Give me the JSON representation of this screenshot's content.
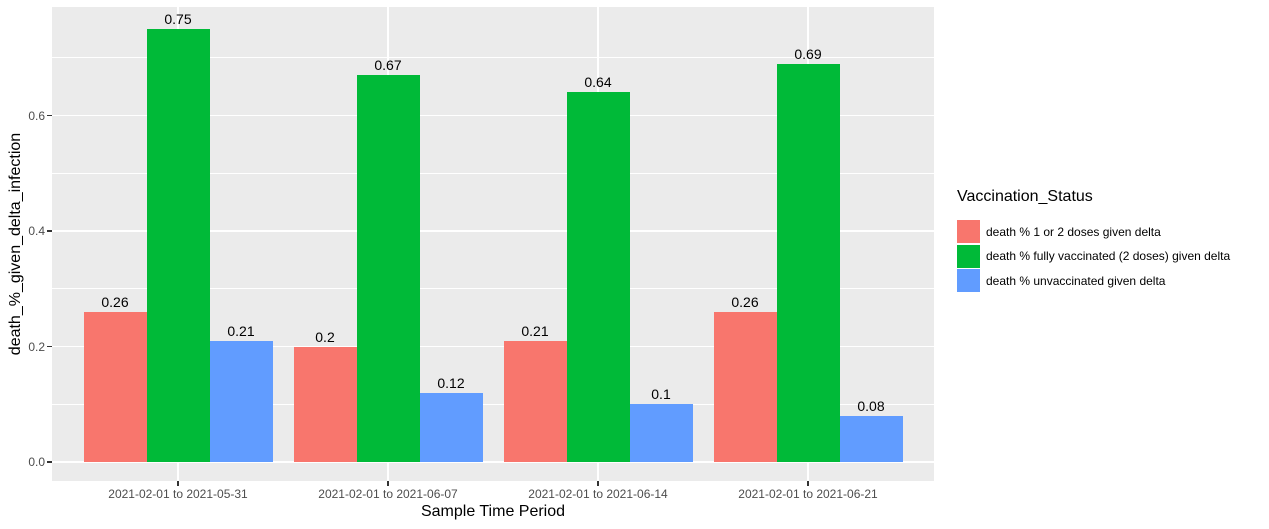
{
  "chart_data": {
    "type": "bar",
    "title": "",
    "xlabel": "Sample Time Period",
    "ylabel": "death_%_given_delta_infection",
    "categories": [
      "2021-02-01 to 2021-05-31",
      "2021-02-01 to 2021-06-07",
      "2021-02-01 to 2021-06-14",
      "2021-02-01 to 2021-06-21"
    ],
    "series": [
      {
        "name": "death % 1 or 2 doses given delta",
        "color": "#F8766D",
        "values": [
          0.26,
          0.2,
          0.21,
          0.26
        ]
      },
      {
        "name": "death % fully vaccinated (2 doses) given delta",
        "color": "#00BA38",
        "values": [
          0.75,
          0.67,
          0.64,
          0.69
        ]
      },
      {
        "name": "death % unvaccinated given delta",
        "color": "#619CFF",
        "values": [
          0.21,
          0.12,
          0.1,
          0.08
        ]
      }
    ],
    "legend_title": "Vaccination_Status",
    "legend_position": "right",
    "grid": true,
    "bar_value_labels_shown": true,
    "y_ticks": [
      {
        "label": "0.0",
        "value": 0.0
      },
      {
        "label": "0.2",
        "value": 0.2
      },
      {
        "label": "0.4",
        "value": 0.4
      },
      {
        "label": "0.6",
        "value": 0.6
      }
    ],
    "y_minor_gridlines": [
      0.1,
      0.3,
      0.5,
      0.7
    ],
    "ylim": [
      0,
      0.79
    ]
  },
  "colors": {
    "panel_background": "#EBEBEB",
    "gridline": "#FFFFFF",
    "tick_label": "#4D4D4D",
    "tick_mark": "#333333",
    "text": "#000000",
    "page_background": "#FFFFFF"
  }
}
